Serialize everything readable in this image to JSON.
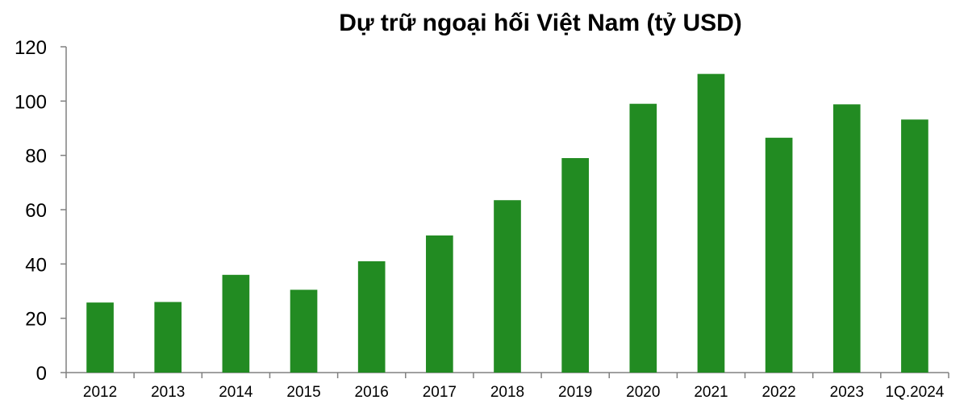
{
  "chart_data": {
    "type": "bar",
    "title": "Dự trữ ngoại hối Việt Nam (tỷ USD)",
    "categories": [
      "2012",
      "2013",
      "2014",
      "2015",
      "2016",
      "2017",
      "2018",
      "2019",
      "2020",
      "2021",
      "2022",
      "2023",
      "1Q.2024"
    ],
    "values": [
      25.8,
      26,
      36,
      30.5,
      41,
      50.5,
      63.5,
      79,
      99,
      110,
      86.5,
      98.8,
      93.2
    ],
    "xlabel": "",
    "ylabel": "",
    "ylim": [
      0,
      120
    ],
    "yticks": [
      0,
      20,
      40,
      60,
      80,
      100,
      120
    ],
    "grid": false,
    "legend": "none",
    "bar_color": "#228B22"
  }
}
